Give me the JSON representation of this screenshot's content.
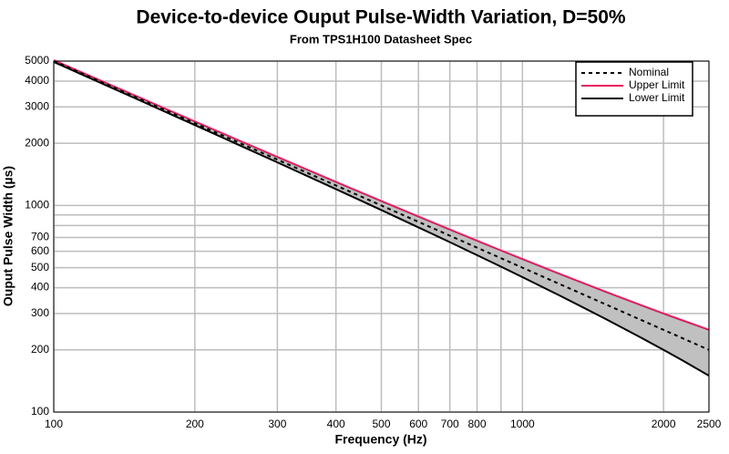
{
  "chart_data": {
    "type": "line",
    "title": "Device-to-device Ouput Pulse-Width Variation, D=50%",
    "subtitle": "From TPS1H100 Datasheet Spec",
    "x_label": "Frequency (Hz)",
    "y_label": "Ouput Pulse Width (µs)",
    "x_scale": "log",
    "y_scale": "log",
    "grid": true,
    "legend": "upper right",
    "range_fill": "#c0c0c0",
    "x": [
      100,
      150,
      200,
      300,
      400,
      500,
      600,
      700,
      800,
      900,
      1000,
      1200,
      1500,
      1800,
      2000,
      2200,
      2500
    ],
    "series": [
      {
        "name": "Nominal",
        "color": "#000000",
        "dash": true,
        "values": [
          5000,
          3333.3,
          2500,
          1666.7,
          1250,
          1000,
          833.3,
          714.3,
          625,
          555.6,
          500,
          416.7,
          333.3,
          277.8,
          250,
          227.3,
          200
        ]
      },
      {
        "name": "Upper Limit",
        "color": "#e8175d",
        "dash": false,
        "values": [
          5050,
          3383.3,
          2550,
          1716.7,
          1300,
          1050,
          883.3,
          764.3,
          675,
          605.6,
          550,
          466.7,
          383.3,
          327.8,
          300,
          277.3,
          250
        ]
      },
      {
        "name": "Lower Limit",
        "color": "#000000",
        "dash": false,
        "values": [
          4950,
          3283.3,
          2450,
          1616.7,
          1200,
          950,
          783.3,
          664.3,
          575,
          505.6,
          450,
          366.7,
          283.3,
          227.8,
          200,
          177.3,
          150
        ]
      }
    ],
    "xlim": [
      100,
      2500
    ],
    "ylim": [
      100,
      5000
    ],
    "xticks": [
      100,
      200,
      300,
      400,
      500,
      600,
      700,
      800,
      1000,
      2000,
      2500
    ],
    "x_minor_grid": [
      900
    ],
    "yticks": [
      100,
      200,
      300,
      400,
      500,
      600,
      700,
      1000,
      2000,
      3000,
      4000,
      5000
    ],
    "y_minor_grid": [
      800,
      900
    ]
  }
}
